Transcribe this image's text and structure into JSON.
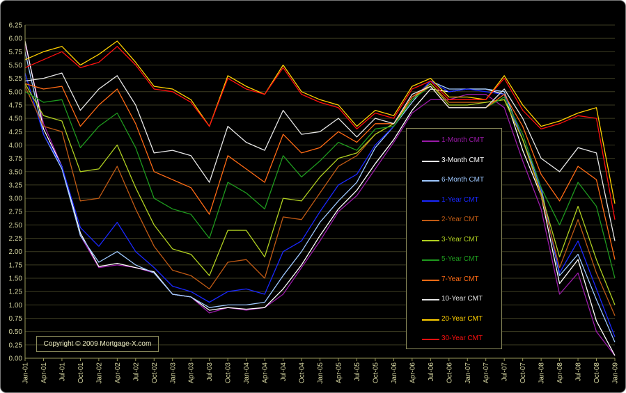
{
  "chart_data": {
    "type": "line",
    "title": "",
    "xlabel": "",
    "ylabel": "",
    "ylim": [
      0,
      6.25
    ],
    "y_ticks": [
      "0.00",
      "0.25",
      "0.50",
      "0.75",
      "1.00",
      "1.25",
      "1.50",
      "1.75",
      "2.00",
      "2.25",
      "2.50",
      "2.75",
      "3.00",
      "3.25",
      "3.50",
      "3.75",
      "4.00",
      "4.25",
      "4.50",
      "4.75",
      "5.00",
      "5.25",
      "5.50",
      "5.75",
      "6.00",
      "6.25"
    ],
    "x_ticks": [
      "Jan-01",
      "Apr-01",
      "Jul-01",
      "Oct-01",
      "Jan-02",
      "Apr-02",
      "Jul-02",
      "Oct-02",
      "Jan-03",
      "Apr-03",
      "Jul-03",
      "Oct-03",
      "Jan-04",
      "Apr-04",
      "Jul-04",
      "Oct-04",
      "Jan-05",
      "Apr-05",
      "Jul-05",
      "Oct-05",
      "Jan-06",
      "Apr-06",
      "Jul-06",
      "Oct-06",
      "Jan-07",
      "Apr-07",
      "Jul-07",
      "Oct-07",
      "Jan-08",
      "Apr-08",
      "Jul-08",
      "Oct-08",
      "Jan-09"
    ],
    "grid": true,
    "legend_position": "right",
    "x": [
      "Jan-01",
      "Apr-01",
      "Jul-01",
      "Oct-01",
      "Jan-02",
      "Apr-02",
      "Jul-02",
      "Oct-02",
      "Jan-03",
      "Apr-03",
      "Jul-03",
      "Oct-03",
      "Jan-04",
      "Apr-04",
      "Jul-04",
      "Oct-04",
      "Jan-05",
      "Apr-05",
      "Jul-05",
      "Oct-05",
      "Jan-06",
      "Apr-06",
      "Jul-06",
      "Oct-06",
      "Jan-07",
      "Apr-07",
      "Jul-07",
      "Oct-07",
      "Jan-08",
      "Apr-08",
      "Jul-08",
      "Oct-08",
      "Jan-09"
    ],
    "series": [
      {
        "name": "1-Month CMT",
        "color": "#9a1aa8",
        "values": [
          5.9,
          4.4,
          3.6,
          2.3,
          1.7,
          1.75,
          1.7,
          1.6,
          1.2,
          1.15,
          0.85,
          0.95,
          0.9,
          0.95,
          1.2,
          1.7,
          2.2,
          2.75,
          3.05,
          3.55,
          4.05,
          4.6,
          4.85,
          4.85,
          4.95,
          4.95,
          4.7,
          3.7,
          2.8,
          1.2,
          1.6,
          0.5,
          0.05
        ]
      },
      {
        "name": "3-Month CMT",
        "color": "#ffffff",
        "values": [
          5.95,
          4.3,
          3.6,
          2.35,
          1.72,
          1.78,
          1.7,
          1.62,
          1.2,
          1.15,
          0.9,
          0.95,
          0.92,
          0.95,
          1.3,
          1.75,
          2.3,
          2.8,
          3.15,
          3.65,
          4.1,
          4.65,
          5.05,
          5.0,
          5.05,
          5.05,
          4.95,
          3.9,
          3.05,
          1.4,
          1.85,
          0.7,
          0.05
        ]
      },
      {
        "name": "6-Month CMT",
        "color": "#9ec8ff",
        "values": [
          5.75,
          4.2,
          3.55,
          2.3,
          1.8,
          2.0,
          1.75,
          1.6,
          1.2,
          1.15,
          0.95,
          1.0,
          1.0,
          1.05,
          1.55,
          2.0,
          2.55,
          2.95,
          3.3,
          3.95,
          4.35,
          4.8,
          5.2,
          5.05,
          5.05,
          5.05,
          5.0,
          4.1,
          3.2,
          1.55,
          1.95,
          1.1,
          0.3
        ]
      },
      {
        "name": "1-Year CMT",
        "color": "#1a28ff",
        "values": [
          5.35,
          4.2,
          3.6,
          2.45,
          2.1,
          2.55,
          2.0,
          1.7,
          1.35,
          1.25,
          1.05,
          1.25,
          1.3,
          1.2,
          2.0,
          2.2,
          2.75,
          3.25,
          3.45,
          4.0,
          4.35,
          4.85,
          5.2,
          5.0,
          5.05,
          5.0,
          4.95,
          4.1,
          3.15,
          1.6,
          2.2,
          1.3,
          0.4
        ]
      },
      {
        "name": "2-Year CMT",
        "color": "#c05a14",
        "values": [
          5.1,
          4.35,
          4.25,
          2.95,
          3.0,
          3.6,
          2.8,
          2.1,
          1.65,
          1.55,
          1.3,
          1.8,
          1.85,
          1.5,
          2.65,
          2.6,
          3.1,
          3.6,
          3.8,
          4.2,
          4.4,
          4.9,
          5.15,
          4.8,
          4.8,
          4.8,
          4.85,
          4.1,
          3.05,
          1.7,
          2.6,
          1.6,
          0.8
        ]
      },
      {
        "name": "3-Year CMT",
        "color": "#b0d020",
        "values": [
          5.15,
          4.55,
          4.45,
          3.5,
          3.55,
          4.0,
          3.2,
          2.5,
          2.05,
          1.95,
          1.55,
          2.4,
          2.4,
          1.9,
          3.0,
          2.95,
          3.4,
          3.75,
          3.85,
          4.2,
          4.4,
          4.85,
          5.15,
          4.75,
          4.75,
          4.8,
          4.85,
          4.1,
          3.1,
          1.9,
          2.85,
          1.85,
          1.0
        ]
      },
      {
        "name": "5-Year CMT",
        "color": "#1e9a1e",
        "values": [
          5.0,
          4.8,
          4.85,
          3.95,
          4.35,
          4.6,
          3.95,
          3.0,
          2.8,
          2.7,
          2.25,
          3.3,
          3.1,
          2.8,
          3.8,
          3.4,
          3.7,
          4.05,
          3.9,
          4.3,
          4.35,
          4.85,
          5.1,
          4.7,
          4.7,
          4.7,
          4.9,
          4.2,
          3.2,
          2.5,
          3.3,
          2.85,
          1.5
        ]
      },
      {
        "name": "7-Year CMT",
        "color": "#ff6a14",
        "values": [
          5.15,
          5.05,
          5.1,
          4.35,
          4.75,
          5.05,
          4.4,
          3.5,
          3.35,
          3.2,
          2.7,
          3.8,
          3.55,
          3.3,
          4.2,
          3.85,
          3.95,
          4.25,
          4.05,
          4.4,
          4.4,
          4.9,
          5.1,
          4.7,
          4.7,
          4.7,
          4.95,
          4.35,
          3.45,
          2.95,
          3.6,
          3.35,
          1.85
        ]
      },
      {
        "name": "10-Year CMT",
        "color": "#e6e6e6",
        "values": [
          5.2,
          5.25,
          5.35,
          4.65,
          5.05,
          5.3,
          4.75,
          3.85,
          3.9,
          3.8,
          3.3,
          4.35,
          4.05,
          3.9,
          4.65,
          4.2,
          4.25,
          4.5,
          4.15,
          4.5,
          4.4,
          4.95,
          5.1,
          4.7,
          4.7,
          4.7,
          5.05,
          4.5,
          3.75,
          3.5,
          3.95,
          3.85,
          2.2
        ]
      },
      {
        "name": "20-Year CMT",
        "color": "#ffd000",
        "values": [
          5.6,
          5.75,
          5.85,
          5.5,
          5.7,
          5.95,
          5.55,
          5.1,
          5.05,
          4.85,
          4.35,
          5.3,
          5.1,
          4.95,
          5.5,
          5.0,
          4.85,
          4.75,
          4.35,
          4.65,
          4.55,
          5.1,
          5.25,
          4.9,
          4.9,
          4.85,
          5.3,
          4.75,
          4.35,
          4.45,
          4.6,
          4.7,
          2.9
        ]
      },
      {
        "name": "30-Year CMT",
        "color": "#ff1010",
        "values": [
          5.45,
          5.6,
          5.75,
          5.45,
          5.55,
          5.85,
          5.5,
          5.05,
          5.0,
          4.8,
          4.35,
          5.25,
          5.05,
          4.95,
          5.45,
          4.95,
          4.8,
          4.7,
          4.3,
          4.6,
          4.5,
          5.05,
          5.2,
          4.85,
          4.85,
          4.85,
          5.25,
          4.65,
          4.3,
          4.4,
          4.55,
          4.5,
          2.6
        ]
      }
    ]
  },
  "copyright": "Copyright © 2009 Mortgage-X.com",
  "colors": {
    "background": "#000000",
    "axis": "#9a9a5a",
    "grid": "#3d3d22",
    "tick_text": "#d4d4a0",
    "frame": "#777777"
  }
}
